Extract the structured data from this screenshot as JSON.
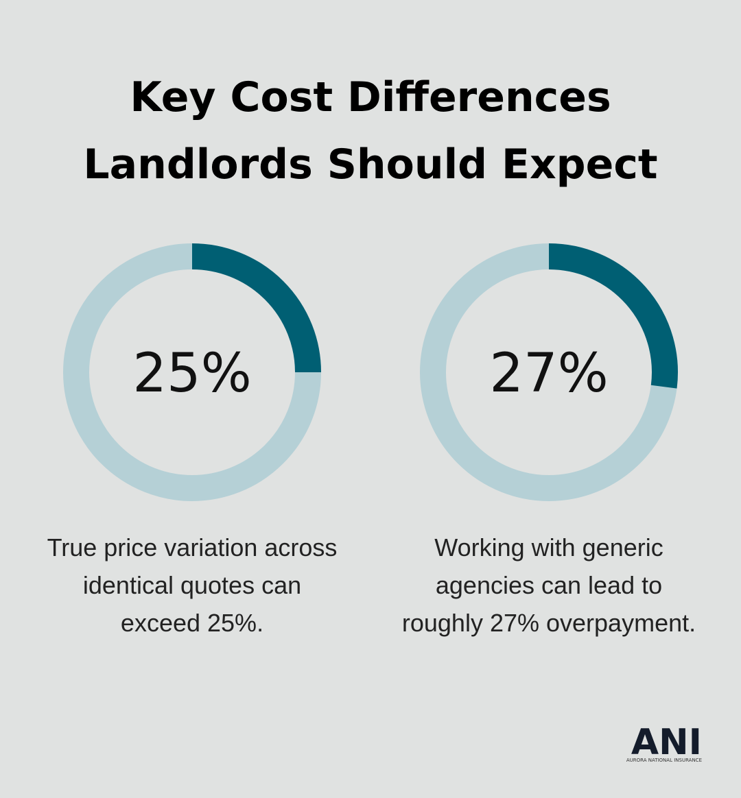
{
  "title": [
    "Key Cost Differences",
    "Landlords Should Expect"
  ],
  "chart_data": [
    {
      "type": "donut",
      "values": [
        25
      ],
      "value_labels": [
        "25%"
      ],
      "color": "#005f73",
      "track_color": "#b5d0d6",
      "caption": [
        "True price variation across",
        "identical quotes can",
        "exceed 25%."
      ]
    },
    {
      "type": "donut",
      "values": [
        27
      ],
      "value_labels": [
        "27%"
      ],
      "color": "#005f73",
      "track_color": "#b5d0d6",
      "caption": [
        "Working with generic",
        "agencies can lead to",
        "roughly 27% overpayment."
      ]
    }
  ],
  "logo": {
    "mark": "ANI",
    "name": "AURORA NATIONAL INSURANCE"
  }
}
